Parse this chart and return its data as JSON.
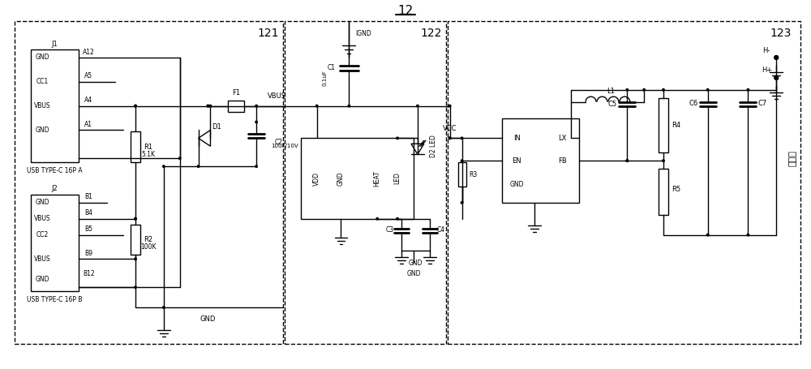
{
  "title": "12",
  "bg_color": "#ffffff",
  "line_color": "#000000",
  "box_121_label": "121",
  "box_122_label": "122",
  "box_123_label": "123"
}
